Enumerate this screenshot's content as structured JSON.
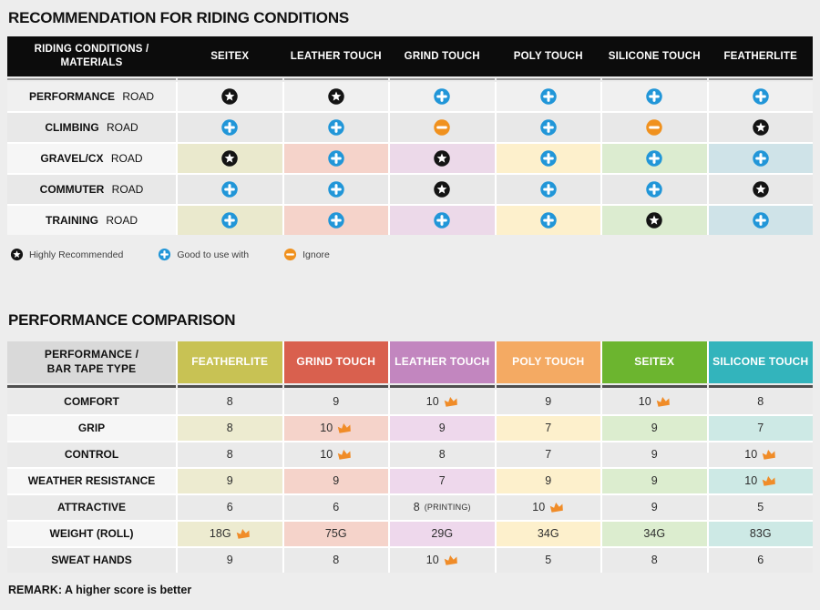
{
  "colors": {
    "page_bg": "#ededed",
    "star_bg": "#141414",
    "plus_bg": "#2196d8",
    "minus_bg": "#f0911e",
    "crown": "#f08c28",
    "t1_header_bg": "#0c0c0c",
    "t1_underline": "#9c9c9c",
    "t2_underline": "#4f4f4f",
    "t2_corner_bg": "#d9d9d9",
    "t2_corner_text": "#111111"
  },
  "table1": {
    "title": "RECOMMENDATION FOR RIDING CONDITIONS",
    "corner": {
      "line1": "RIDING CONDITIONS /",
      "line2": "MATERIALS"
    },
    "columns": [
      "SEITEX",
      "LEATHER TOUCH",
      "GRIND TOUCH",
      "POLY TOUCH",
      "SILICONE TOUCH",
      "FEATHERLITE"
    ],
    "column_tints": [
      "#eae9cd",
      "#f5d3ca",
      "#ecd9e9",
      "#fdf0cc",
      "#dcecd0",
      "#cfe3e8"
    ],
    "rows": [
      {
        "label_bold": "PERFORMANCE",
        "label_rest": "ROAD",
        "tinted": false,
        "bg": "#f0f0f0",
        "cells": [
          "star",
          "star",
          "plus",
          "plus",
          "plus",
          "plus"
        ]
      },
      {
        "label_bold": "CLIMBING",
        "label_rest": "ROAD",
        "tinted": false,
        "bg": "#e8e8e8",
        "cells": [
          "plus",
          "plus",
          "minus",
          "plus",
          "minus",
          "star"
        ]
      },
      {
        "label_bold": "GRAVEL/CX",
        "label_rest": "ROAD",
        "tinted": true,
        "bg": "#f6f6f6",
        "cells": [
          "star",
          "plus",
          "star",
          "plus",
          "plus",
          "plus"
        ]
      },
      {
        "label_bold": "COMMUTER",
        "label_rest": "ROAD",
        "tinted": false,
        "bg": "#e8e8e8",
        "cells": [
          "plus",
          "plus",
          "star",
          "plus",
          "plus",
          "star"
        ]
      },
      {
        "label_bold": "TRAINING",
        "label_rest": "ROAD",
        "tinted": true,
        "bg": "#f6f6f6",
        "cells": [
          "plus",
          "plus",
          "plus",
          "plus",
          "star",
          "plus"
        ]
      }
    ],
    "legend": [
      {
        "icon": "star",
        "label": "Highly Recommended"
      },
      {
        "icon": "plus",
        "label": "Good to use with"
      },
      {
        "icon": "minus",
        "label": "Ignore"
      }
    ]
  },
  "table2": {
    "title": "PERFORMANCE COMPARISON",
    "corner": {
      "line1": "PERFORMANCE /",
      "line2": "BAR TAPE TYPE"
    },
    "columns": [
      {
        "label": "FEATHERLITE",
        "color": "#c8c254",
        "tint": "#edebd0"
      },
      {
        "label": "GRIND TOUCH",
        "color": "#d9604e",
        "tint": "#f5d3ca"
      },
      {
        "label": "LEATHER TOUCH",
        "color": "#c286bf",
        "tint": "#eed8ec"
      },
      {
        "label": "POLY TOUCH",
        "color": "#f4aa63",
        "tint": "#fdf0cc"
      },
      {
        "label": "SEITEX",
        "color": "#6cb52f",
        "tint": "#dcedcf"
      },
      {
        "label": "SILICONE TOUCH",
        "color": "#33b4bc",
        "tint": "#cde9e5"
      }
    ],
    "rows": [
      {
        "label": "COMFORT",
        "tinted": false,
        "bg": "#eaeaea",
        "cells": [
          {
            "value": "8"
          },
          {
            "value": "9"
          },
          {
            "value": "10",
            "crown": true
          },
          {
            "value": "9"
          },
          {
            "value": "10",
            "crown": true
          },
          {
            "value": "8"
          }
        ]
      },
      {
        "label": "GRIP",
        "tinted": true,
        "bg": "#f6f6f6",
        "cells": [
          {
            "value": "8"
          },
          {
            "value": "10",
            "crown": true
          },
          {
            "value": "9"
          },
          {
            "value": "7"
          },
          {
            "value": "9"
          },
          {
            "value": "7"
          }
        ]
      },
      {
        "label": "CONTROL",
        "tinted": false,
        "bg": "#eaeaea",
        "cells": [
          {
            "value": "8"
          },
          {
            "value": "10",
            "crown": true
          },
          {
            "value": "8"
          },
          {
            "value": "7"
          },
          {
            "value": "9"
          },
          {
            "value": "10",
            "crown": true
          }
        ]
      },
      {
        "label": "WEATHER RESISTANCE",
        "tinted": true,
        "bg": "#f6f6f6",
        "cells": [
          {
            "value": "9"
          },
          {
            "value": "9"
          },
          {
            "value": "7"
          },
          {
            "value": "9"
          },
          {
            "value": "9"
          },
          {
            "value": "10",
            "crown": true
          }
        ]
      },
      {
        "label": "ATTRACTIVE",
        "tinted": false,
        "bg": "#eaeaea",
        "cells": [
          {
            "value": "6"
          },
          {
            "value": "6"
          },
          {
            "value": "8",
            "suffix": "(PRINTING)"
          },
          {
            "value": "10",
            "crown": true
          },
          {
            "value": "9"
          },
          {
            "value": "5"
          }
        ]
      },
      {
        "label": "WEIGHT (ROLL)",
        "tinted": true,
        "bg": "#f6f6f6",
        "cells": [
          {
            "value": "18G",
            "crown": true
          },
          {
            "value": "75G"
          },
          {
            "value": "29G"
          },
          {
            "value": "34G"
          },
          {
            "value": "34G"
          },
          {
            "value": "83G"
          }
        ]
      },
      {
        "label": "SWEAT HANDS",
        "tinted": false,
        "bg": "#eaeaea",
        "cells": [
          {
            "value": "9"
          },
          {
            "value": "8"
          },
          {
            "value": "10",
            "crown": true
          },
          {
            "value": "5"
          },
          {
            "value": "8"
          },
          {
            "value": "6"
          }
        ]
      }
    ],
    "remark": "REMARK: A higher score is better"
  }
}
